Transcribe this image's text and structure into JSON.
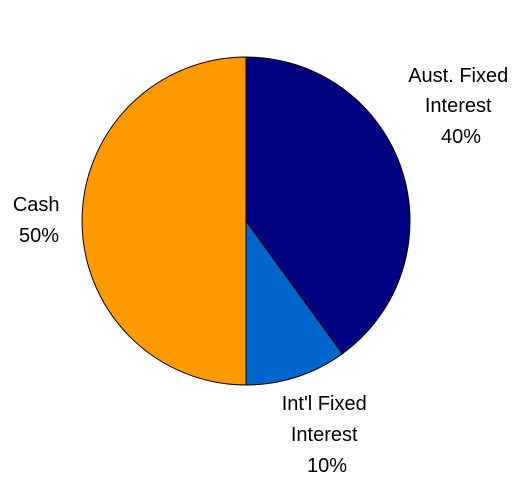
{
  "chart_data": {
    "type": "pie",
    "title": "",
    "slices": [
      {
        "name": "Aust. Fixed Interest",
        "value": 40,
        "label_lines": [
          "Aust. Fixed",
          "Interest",
          "40%"
        ],
        "color": "#000080"
      },
      {
        "name": "Int'l Fixed Interest",
        "value": 10,
        "label_lines": [
          "Int'l Fixed",
          "Interest",
          "10%"
        ],
        "color": "#0066CC"
      },
      {
        "name": "Cash",
        "value": 50,
        "label_lines": [
          "Cash",
          "50%"
        ],
        "color": "#FF9900"
      }
    ],
    "legend": "none"
  }
}
